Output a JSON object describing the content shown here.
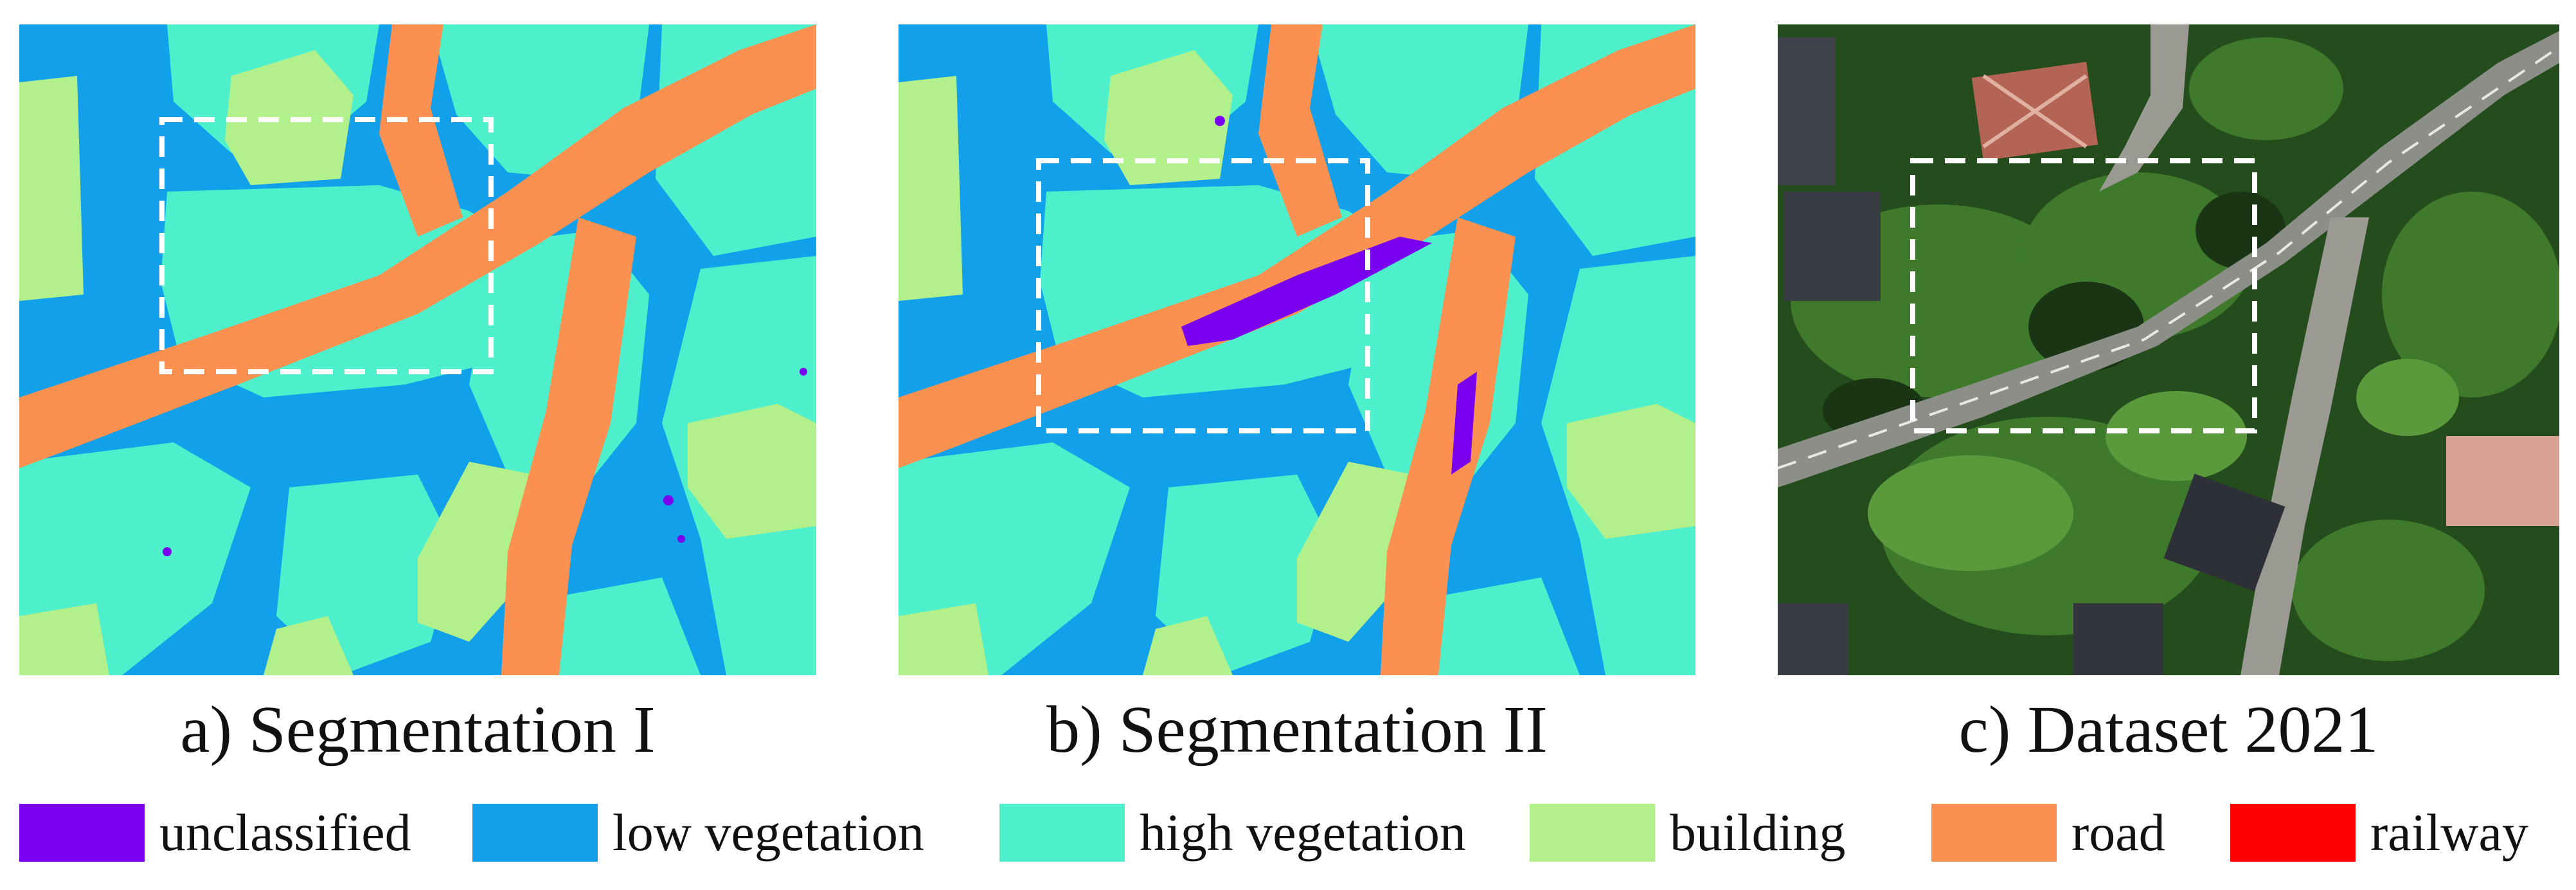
{
  "panels": [
    {
      "caption": "a) Segmentation I"
    },
    {
      "caption": "b) Segmentation II"
    },
    {
      "caption": "c) Dataset 2021"
    }
  ],
  "legend": [
    {
      "label": "unclassified",
      "color": "#7a00f0"
    },
    {
      "label": "low vegetation",
      "color": "#12a0ea"
    },
    {
      "label": "high vegetation",
      "color": "#4ef0cc"
    },
    {
      "label": "building",
      "color": "#b2f08c"
    },
    {
      "label": "road",
      "color": "#fb9150"
    },
    {
      "label": "railway",
      "color": "#ff0000"
    }
  ]
}
